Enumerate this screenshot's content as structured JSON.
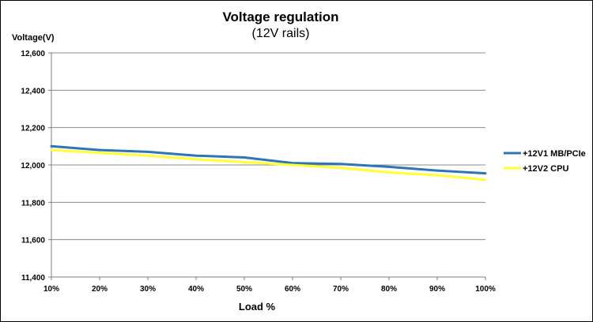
{
  "chart_data": {
    "type": "line",
    "title": "Voltage regulation",
    "subtitle": "(12V rails)",
    "xlabel": "Load %",
    "ylabel": "Voltage(V)",
    "categories": [
      "10%",
      "20%",
      "30%",
      "40%",
      "50%",
      "60%",
      "70%",
      "80%",
      "90%",
      "100%"
    ],
    "y_tick_labels": [
      "11,400",
      "11,600",
      "11,800",
      "12,000",
      "12,200",
      "12,400",
      "12,600"
    ],
    "y_ticks": [
      11.4,
      11.6,
      11.8,
      12.0,
      12.2,
      12.4,
      12.6
    ],
    "ylim": [
      11.4,
      12.6
    ],
    "grid": true,
    "legend_position": "right",
    "series": [
      {
        "name": "+12V1 MB/PCIe",
        "color": "#2E75B6",
        "values": [
          12.1,
          12.08,
          12.07,
          12.05,
          12.04,
          12.01,
          12.005,
          11.99,
          11.97,
          11.955
        ]
      },
      {
        "name": "+12V2 CPU",
        "color": "#FFFF33",
        "values": [
          12.08,
          12.065,
          12.05,
          12.03,
          12.015,
          12.0,
          11.985,
          11.96,
          11.945,
          11.92
        ]
      }
    ]
  }
}
